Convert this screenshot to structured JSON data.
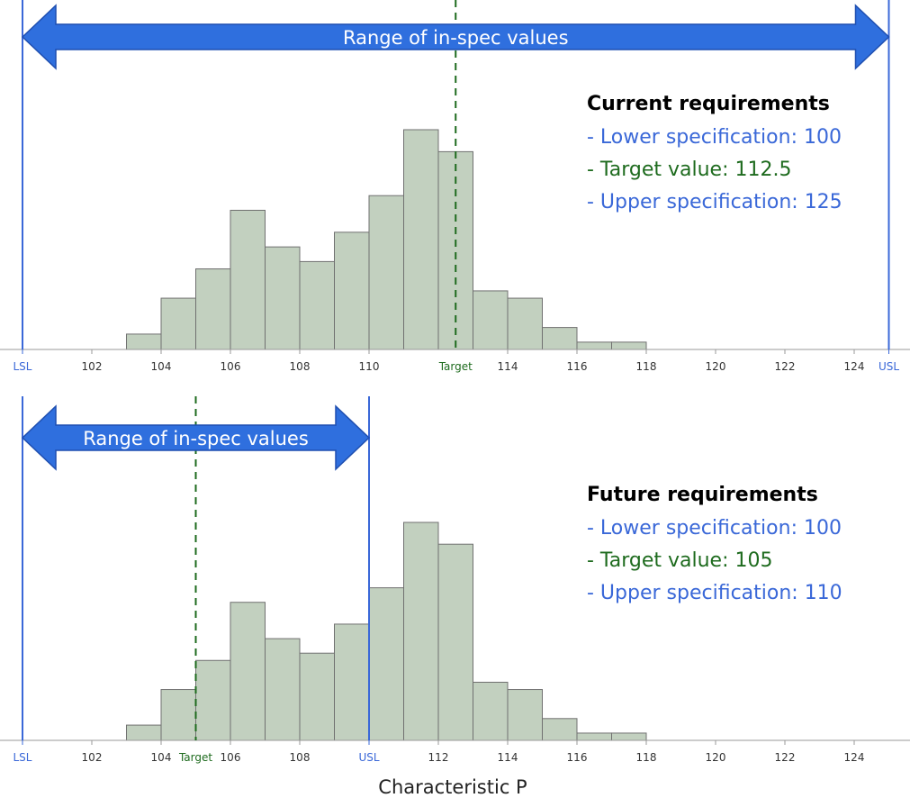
{
  "colors": {
    "bar_fill": "#c2d0bf",
    "bar_stroke": "#707070",
    "axis": "#999999",
    "spec": "#3a68d8",
    "target": "#1e6b1e",
    "arrow_fill": "#2f6fde",
    "arrow_stroke": "#1f4fb0",
    "title": "#000000",
    "tick_text": "#333333"
  },
  "chart_data": [
    {
      "type": "histogram",
      "title": "Current requirements",
      "requirements": [
        {
          "text": "- Lower specification: 100",
          "kind": "spec"
        },
        {
          "text": "- Target value: 112.5",
          "kind": "target"
        },
        {
          "text": "- Upper specification: 125",
          "kind": "spec"
        }
      ],
      "arrow_label": "Range of in-spec values",
      "xlim": [
        99,
        125.5
      ],
      "ylim": [
        0,
        30
      ],
      "tick_values": [
        102,
        104,
        106,
        108,
        110,
        114,
        116,
        118,
        120,
        122,
        124
      ],
      "lsl": {
        "value": 100,
        "label": "LSL"
      },
      "usl": {
        "value": 125,
        "label": "USL"
      },
      "target": {
        "value": 112.5,
        "label": "Target"
      },
      "bins": [
        103,
        104,
        105,
        106,
        107,
        108,
        109,
        110,
        111,
        112,
        113,
        114,
        115,
        116,
        117,
        118
      ],
      "counts": [
        2.1,
        7,
        11,
        19,
        14,
        12,
        16,
        21,
        30,
        27,
        8,
        7,
        3,
        1,
        1
      ],
      "xlabel": ""
    },
    {
      "type": "histogram",
      "title": "Future requirements",
      "requirements": [
        {
          "text": "- Lower specification: 100",
          "kind": "spec"
        },
        {
          "text": "- Target value: 105",
          "kind": "target"
        },
        {
          "text": "- Upper specification: 110",
          "kind": "spec"
        }
      ],
      "arrow_label": "Range of in-spec values",
      "xlim": [
        99,
        125.5
      ],
      "ylim": [
        0,
        30
      ],
      "tick_values": [
        102,
        104,
        106,
        108,
        112,
        114,
        116,
        118,
        120,
        122,
        124
      ],
      "lsl": {
        "value": 100,
        "label": "LSL"
      },
      "usl": {
        "value": 110,
        "label": "USL"
      },
      "target": {
        "value": 105,
        "label": "Target"
      },
      "bins": [
        103,
        104,
        105,
        106,
        107,
        108,
        109,
        110,
        111,
        112,
        113,
        114,
        115,
        116,
        117,
        118
      ],
      "counts": [
        2.1,
        7,
        11,
        19,
        14,
        12,
        16,
        21,
        30,
        27,
        8,
        7,
        3,
        1,
        1
      ],
      "xlabel": "Characteristic P"
    }
  ]
}
